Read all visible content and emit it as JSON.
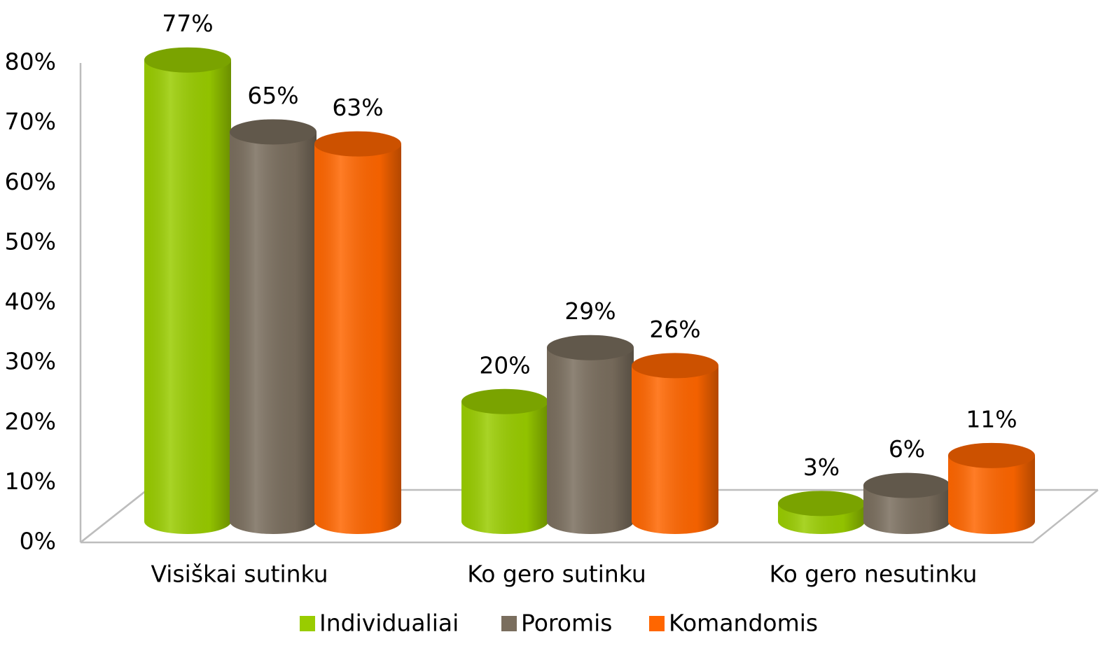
{
  "chart_data": {
    "type": "bar",
    "categories": [
      "Visiškai sutinku",
      "Ko gero sutinku",
      "Ko gero nesutinku"
    ],
    "series": [
      {
        "name": "Individualiai",
        "color": "#99cc00",
        "values": [
          77,
          20,
          3
        ],
        "value_labels": [
          "77%",
          "20%",
          "3%"
        ]
      },
      {
        "name": "Poromis",
        "color": "#7a6e5e",
        "values": [
          65,
          29,
          6
        ],
        "value_labels": [
          "65%",
          "29%",
          "6%"
        ]
      },
      {
        "name": "Komandomis",
        "color": "#ff6600",
        "values": [
          63,
          26,
          11
        ],
        "value_labels": [
          "63%",
          "26%",
          "11%"
        ]
      }
    ],
    "ylim": [
      0,
      80
    ],
    "yticks": [
      {
        "value": 0,
        "label": "0%"
      },
      {
        "value": 10,
        "label": "10%"
      },
      {
        "value": 20,
        "label": "20%"
      },
      {
        "value": 30,
        "label": "30%"
      },
      {
        "value": 40,
        "label": "40%"
      },
      {
        "value": 50,
        "label": "50%"
      },
      {
        "value": 60,
        "label": "60%"
      },
      {
        "value": 70,
        "label": "70%"
      },
      {
        "value": 80,
        "label": "80%"
      }
    ],
    "grid": false,
    "legend": "bottom"
  }
}
